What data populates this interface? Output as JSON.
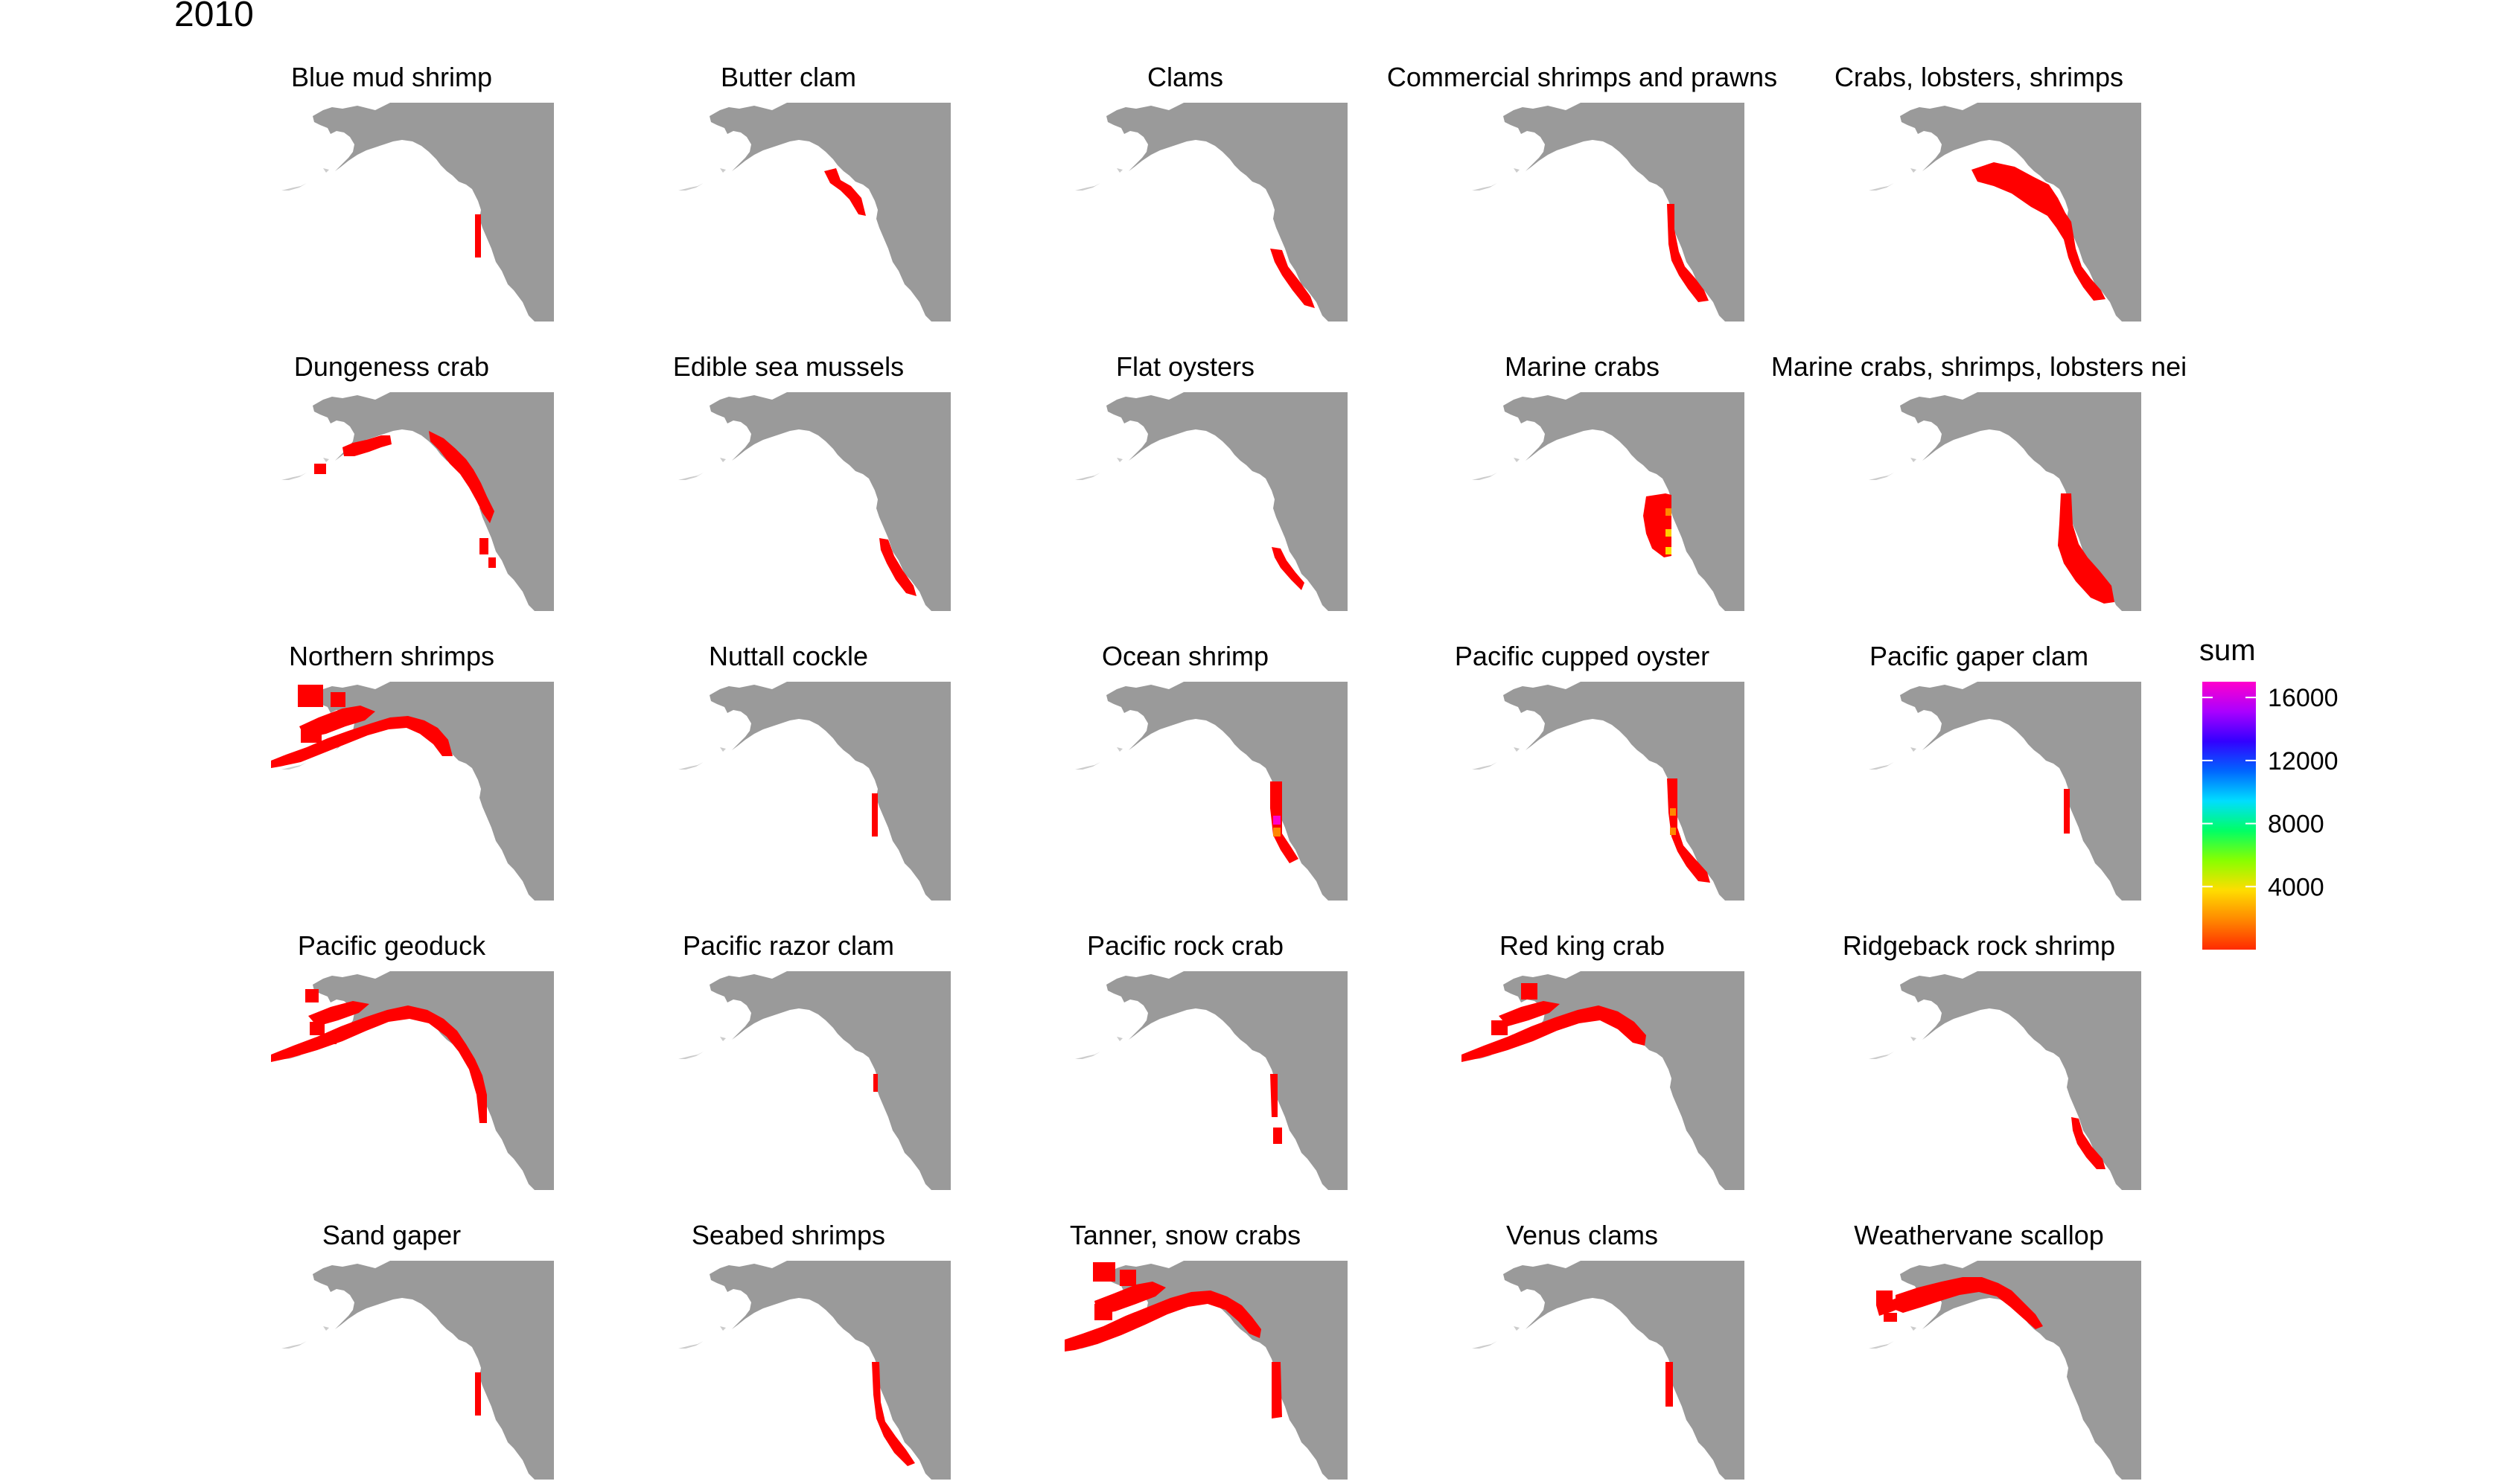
{
  "title": "2010",
  "panels": [
    {
      "label": "Blue mud shrimp",
      "value_note": ""
    },
    {
      "label": "Butter clam"
    },
    {
      "label": "Clams"
    },
    {
      "label": "Commercial shrimps and prawns"
    },
    {
      "label": "Crabs, lobsters, shrimps"
    },
    {
      "label": "Dungeness crab"
    },
    {
      "label": "Edible sea mussels"
    },
    {
      "label": "Flat oysters"
    },
    {
      "label": "Marine crabs"
    },
    {
      "label": "Marine crabs, shrimps, lobsters nei"
    },
    {
      "label": "Northern shrimps"
    },
    {
      "label": "Nuttall cockle"
    },
    {
      "label": "Ocean shrimp"
    },
    {
      "label": "Pacific cupped oyster"
    },
    {
      "label": "Pacific gaper clam"
    },
    {
      "label": "Pacific geoduck"
    },
    {
      "label": "Pacific razor clam"
    },
    {
      "label": "Pacific rock crab"
    },
    {
      "label": "Red king crab"
    },
    {
      "label": "Ridgeback rock shrimp"
    },
    {
      "label": "Sand gaper"
    },
    {
      "label": "Seabed shrimps"
    },
    {
      "label": "Tanner, snow crabs"
    },
    {
      "label": "Venus clams"
    },
    {
      "label": "Weathervane scallop"
    }
  ],
  "legend": {
    "title": "sum",
    "ticks": [
      "16000",
      "12000",
      "8000",
      "4000"
    ],
    "tick_values": [
      16000,
      12000,
      8000,
      4000
    ],
    "range": [
      0,
      17000
    ],
    "gradient_colors": [
      "#ff2a00",
      "#ff8800",
      "#ffdd00",
      "#88ff00",
      "#00ff66",
      "#00ddff",
      "#0066ff",
      "#3300ff",
      "#aa00ff",
      "#ff00cc"
    ]
  },
  "colors": {
    "land": "#9a9a9a",
    "catch": "#ff0000",
    "background": "#ffffff"
  }
}
